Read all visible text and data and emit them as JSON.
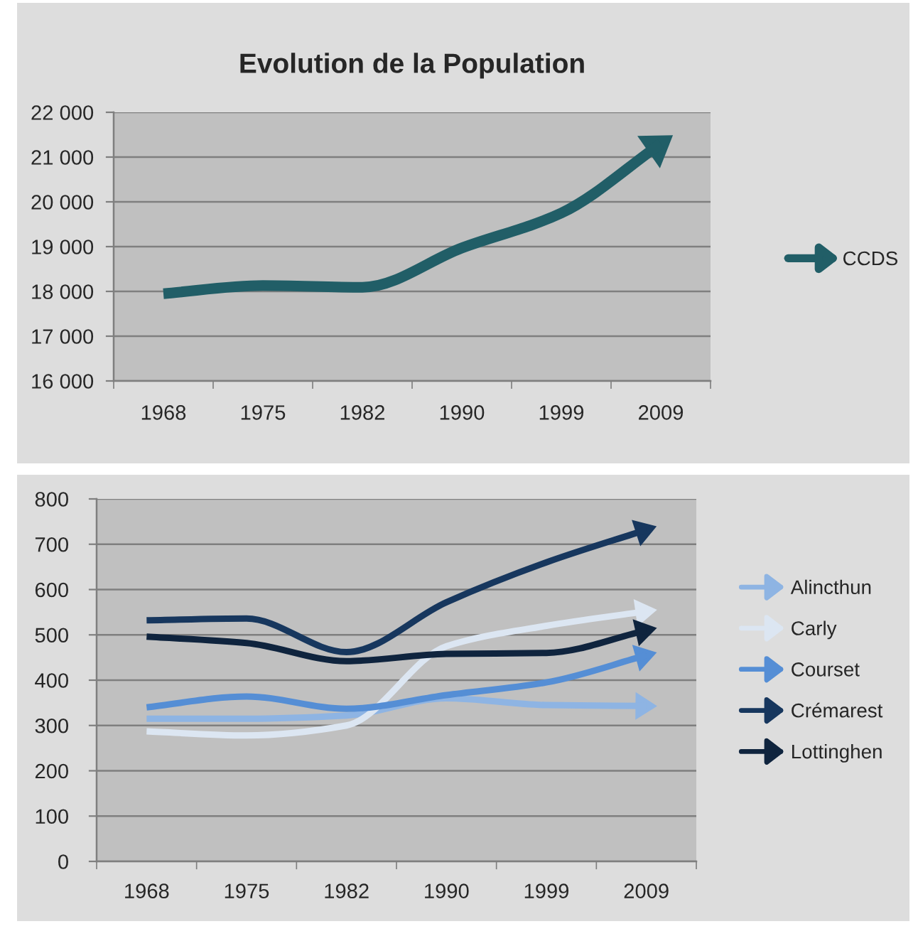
{
  "chart_data": [
    {
      "type": "line",
      "title": "Evolution de la Population",
      "categories": [
        "1968",
        "1975",
        "1982",
        "1990",
        "1999",
        "2009"
      ],
      "series": [
        {
          "name": "CCDS",
          "color": "#215e67",
          "values": [
            17950,
            18130,
            18090,
            18970,
            19750,
            21300
          ]
        }
      ],
      "ylim": [
        16000,
        22000
      ],
      "yticks": [
        {
          "value": 16000,
          "label": "16 000"
        },
        {
          "value": 17000,
          "label": "17 000"
        },
        {
          "value": 18000,
          "label": "18 000"
        },
        {
          "value": 19000,
          "label": "19 000"
        },
        {
          "value": 20000,
          "label": "20 000"
        },
        {
          "value": 21000,
          "label": "21 000"
        },
        {
          "value": 22000,
          "label": "22 000"
        }
      ],
      "grid": "y",
      "legend": "right",
      "line_style": "solid"
    },
    {
      "type": "line",
      "categories": [
        "1968",
        "1975",
        "1982",
        "1990",
        "1999",
        "2009"
      ],
      "series": [
        {
          "name": "Alincthun",
          "color": "#8eb4e3",
          "values": [
            315,
            315,
            322,
            360,
            345,
            343
          ]
        },
        {
          "name": "Carly",
          "color": "#dce6f2",
          "values": [
            287,
            278,
            300,
            475,
            520,
            552
          ]
        },
        {
          "name": "Courset",
          "color": "#558ed5",
          "values": [
            340,
            364,
            337,
            367,
            395,
            455
          ]
        },
        {
          "name": "Crémarest",
          "color": "#17375e",
          "values": [
            532,
            536,
            462,
            572,
            660,
            732
          ]
        },
        {
          "name": "Lottinghen",
          "color": "#0f243e",
          "values": [
            496,
            482,
            442,
            458,
            460,
            510
          ]
        }
      ],
      "ylim": [
        0,
        800
      ],
      "yticks": [
        0,
        100,
        200,
        300,
        400,
        500,
        600,
        700,
        800
      ],
      "grid": "y",
      "legend": "right",
      "line_style": "solid"
    }
  ]
}
